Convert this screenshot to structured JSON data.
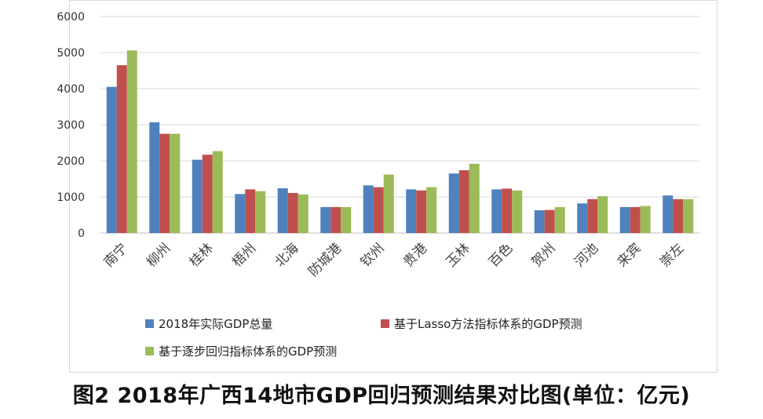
{
  "chart_data": {
    "type": "bar",
    "categories": [
      "南宁",
      "柳州",
      "桂林",
      "梧州",
      "北海",
      "防城港",
      "钦州",
      "贵港",
      "玉林",
      "百色",
      "贺州",
      "河池",
      "来宾",
      "崇左"
    ],
    "series": [
      {
        "name": "2018年实际GDP总量",
        "color": "#4f81bd",
        "values": [
          4050,
          3070,
          2030,
          1080,
          1240,
          720,
          1320,
          1210,
          1650,
          1210,
          630,
          820,
          720,
          1040
        ]
      },
      {
        "name": "基于Lasso方法指标体系的GDP预测",
        "color": "#c0504d",
        "values": [
          4650,
          2750,
          2170,
          1210,
          1110,
          720,
          1270,
          1180,
          1740,
          1230,
          640,
          940,
          720,
          940
        ]
      },
      {
        "name": "基于逐步回归指标体系的GDP预测",
        "color": "#9bbb59",
        "values": [
          5060,
          2750,
          2270,
          1160,
          1070,
          720,
          1620,
          1270,
          1920,
          1180,
          720,
          1020,
          750,
          940
        ]
      }
    ],
    "ylim": [
      0,
      6000
    ],
    "yticks": [
      0,
      1000,
      2000,
      3000,
      4000,
      5000,
      6000
    ],
    "grid": true,
    "legend_position": "bottom"
  },
  "caption": "图2 2018年广西14地市GDP回归预测结果对比图(单位：亿元)"
}
